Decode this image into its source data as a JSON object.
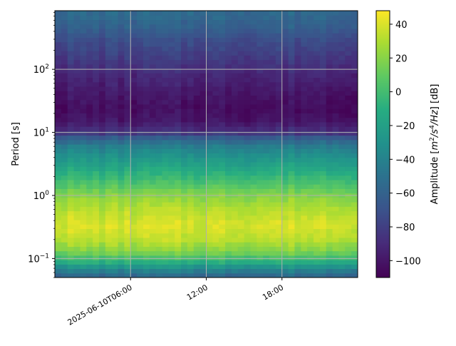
{
  "chart_data": {
    "type": "heatmap",
    "title": "",
    "ylabel": "Period [s]",
    "y_scale": "log",
    "ylim": [
      0.05,
      850
    ],
    "x_range": [
      "2025-06-10T00:00",
      "2025-06-11T00:00"
    ],
    "yticks": [
      {
        "value": 0.1,
        "base": "10",
        "exp": "−1"
      },
      {
        "value": 1,
        "base": "10",
        "exp": "0"
      },
      {
        "value": 10,
        "base": "10",
        "exp": "1"
      },
      {
        "value": 100,
        "base": "10",
        "exp": "2"
      }
    ],
    "xticks": [
      {
        "value": "2025-06-10T06:00",
        "label": "2025-06-10T06:00"
      },
      {
        "value": "2025-06-10T12:00",
        "label": "12:00"
      },
      {
        "value": "2025-06-10T18:00",
        "label": "18:00"
      }
    ],
    "grid": true,
    "colormap": "viridis",
    "colorbar": {
      "label_prefix": "Amplitude [",
      "label_unit_m": "m",
      "label_unit_exp1": "2",
      "label_unit_sep": "/",
      "label_unit_s": "s",
      "label_unit_exp2": "4",
      "label_unit_tail": "/Hz",
      "label_suffix": "] [dB]",
      "range": [
        -110,
        48
      ],
      "ticks": [
        {
          "value": 40,
          "label": "40"
        },
        {
          "value": 20,
          "label": "20"
        },
        {
          "value": 0,
          "label": "0"
        },
        {
          "value": -20,
          "label": "−20"
        },
        {
          "value": -40,
          "label": "−40"
        },
        {
          "value": -60,
          "label": "−60"
        },
        {
          "value": -80,
          "label": "−80"
        },
        {
          "value": -100,
          "label": "−100"
        }
      ]
    },
    "amplitude_profile_db": [
      {
        "period": 800,
        "db": -55
      },
      {
        "period": 500,
        "db": -60
      },
      {
        "period": 300,
        "db": -72
      },
      {
        "period": 150,
        "db": -82
      },
      {
        "period": 80,
        "db": -92
      },
      {
        "period": 40,
        "db": -100
      },
      {
        "period": 25,
        "db": -104
      },
      {
        "period": 15,
        "db": -100
      },
      {
        "period": 10,
        "db": -85
      },
      {
        "period": 8,
        "db": -60
      },
      {
        "period": 6,
        "db": -42
      },
      {
        "period": 4,
        "db": -28
      },
      {
        "period": 2.5,
        "db": -12
      },
      {
        "period": 1.5,
        "db": 5
      },
      {
        "period": 1.0,
        "db": 20
      },
      {
        "period": 0.6,
        "db": 32
      },
      {
        "period": 0.35,
        "db": 40
      },
      {
        "period": 0.2,
        "db": 33
      },
      {
        "period": 0.13,
        "db": 18
      },
      {
        "period": 0.09,
        "db": -8
      },
      {
        "period": 0.07,
        "db": -35
      },
      {
        "period": 0.055,
        "db": -55
      }
    ]
  }
}
